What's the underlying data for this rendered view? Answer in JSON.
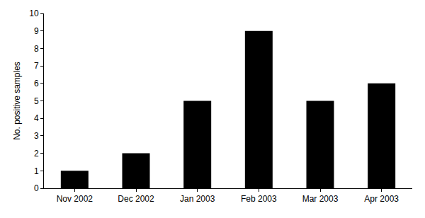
{
  "chart_data": {
    "type": "bar",
    "y_label": "No. positive samples",
    "categories": [
      "Nov 2002",
      "Dec 2002",
      "Jan 2003",
      "Feb 2003",
      "Mar 2003",
      "Apr 2003"
    ],
    "values": [
      1,
      2,
      5,
      9,
      5,
      6
    ],
    "color": "#000000",
    "ylim": [
      0,
      10
    ],
    "yticks": [
      0,
      1,
      2,
      3,
      4,
      5,
      6,
      7,
      8,
      9,
      10
    ],
    "grid": false
  }
}
